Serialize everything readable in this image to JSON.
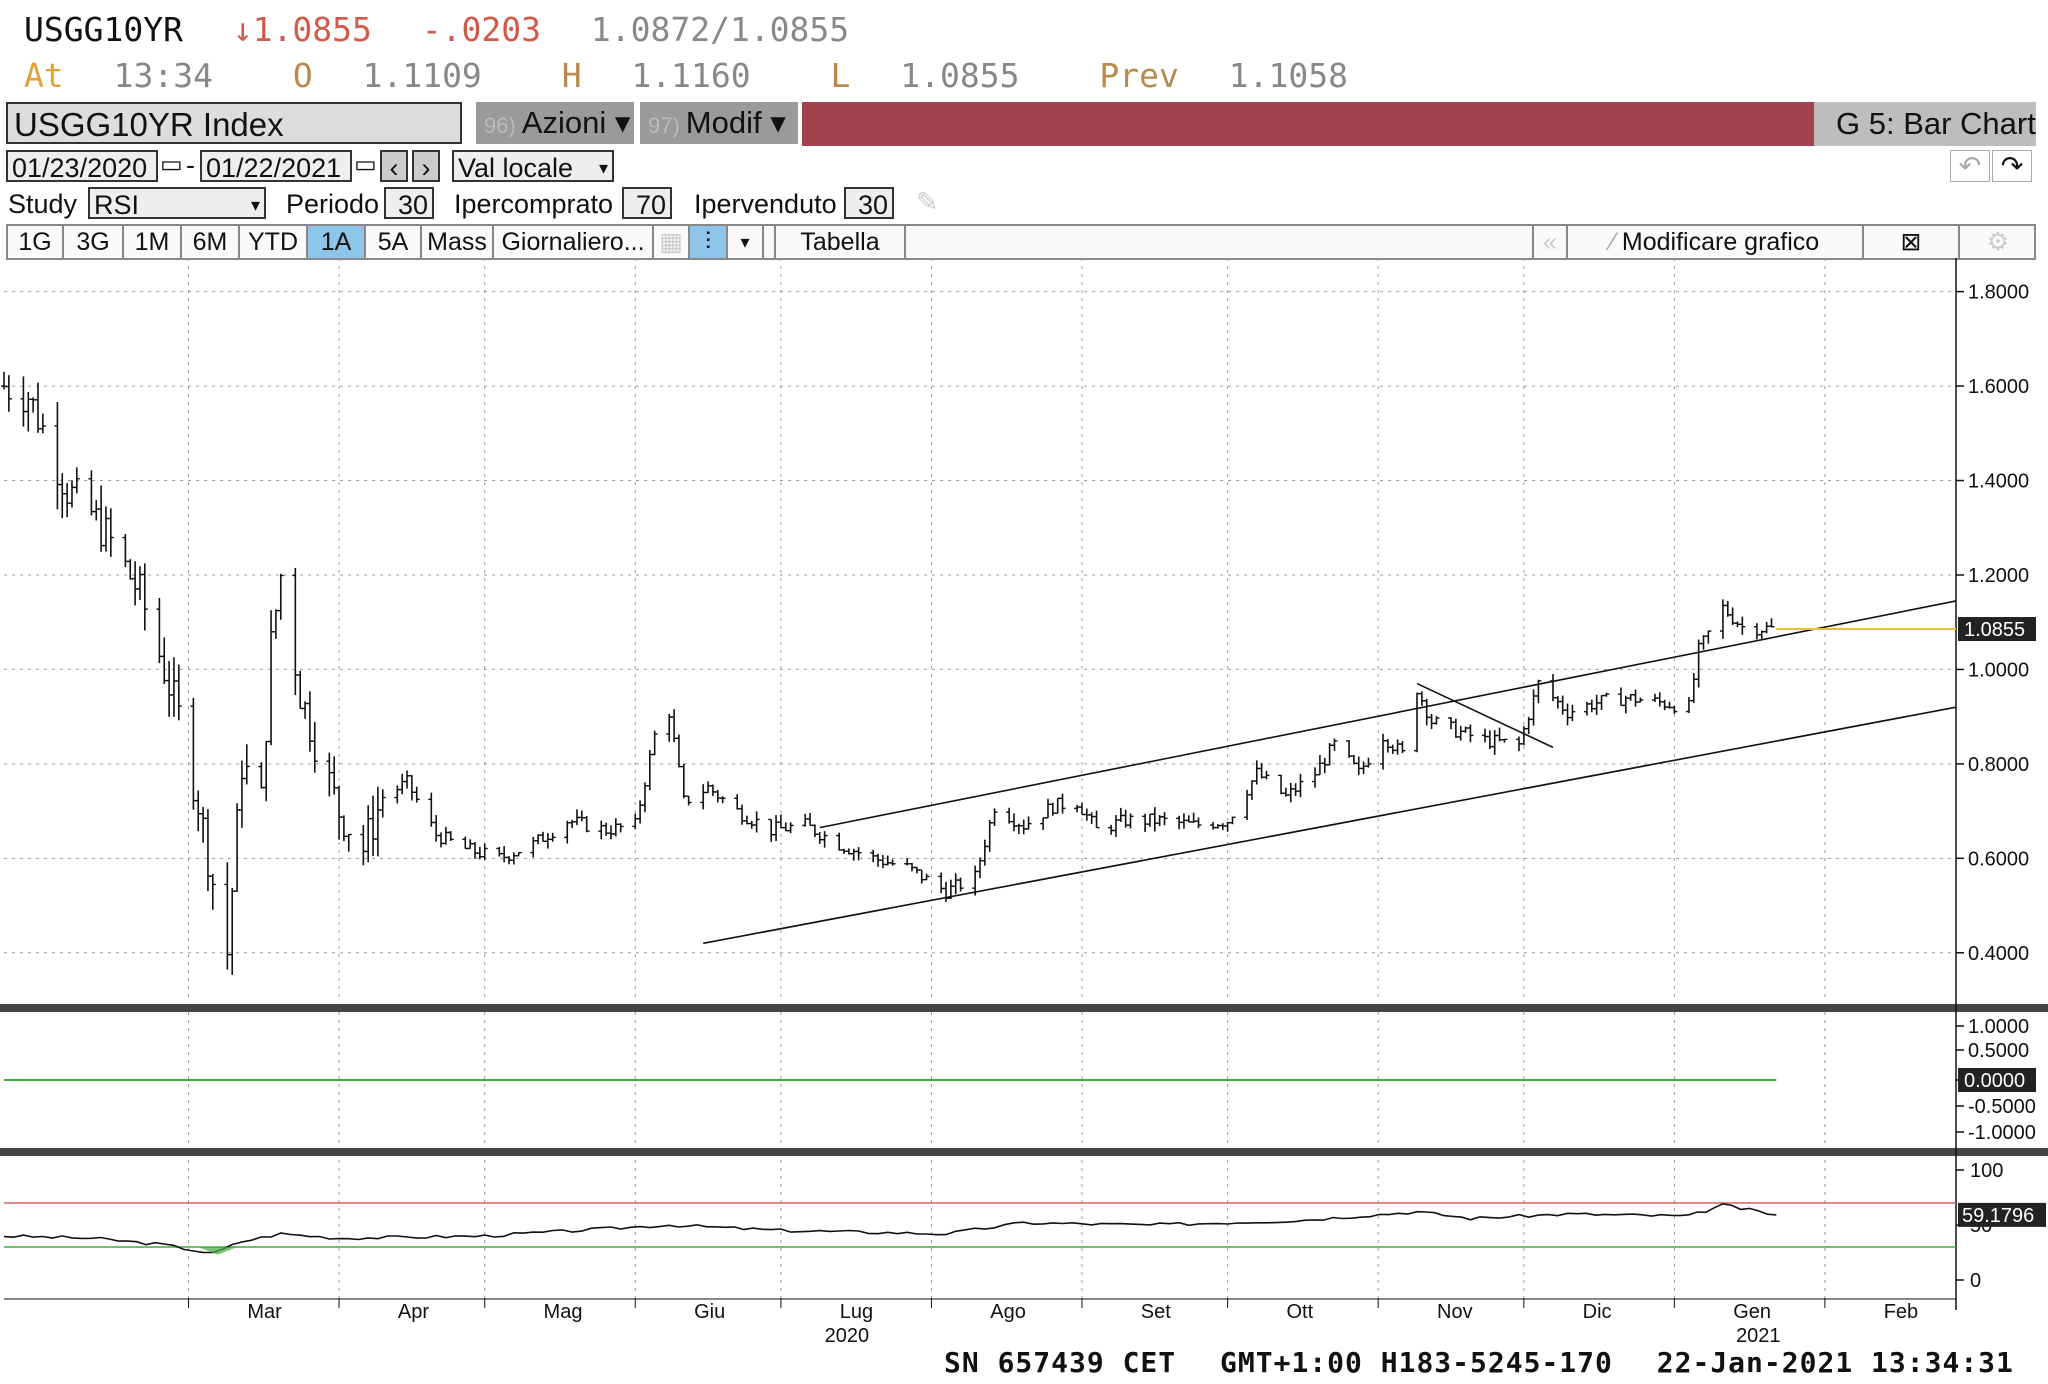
{
  "quote": {
    "ticker": "USGG10YR",
    "last": "↓1.0855",
    "change": "-.0203",
    "bid_ask": "1.0872/1.0855",
    "at_label": "At",
    "at_time": "13:34",
    "open_label": "O",
    "open": "1.1109",
    "high_label": "H",
    "high": "1.1160",
    "low_label": "L",
    "low": "1.0855",
    "prev_label": "Prev",
    "prev": "1.1058"
  },
  "toolbar": {
    "security": "USGG10YR Index",
    "actions_num": "96)",
    "actions_label": "Azioni",
    "edit_num": "97)",
    "edit_label": "Modif",
    "chart_name": "G 5: Bar Chart"
  },
  "range": {
    "start": "01/23/2020",
    "end": "01/22/2021",
    "currency": "Val locale"
  },
  "study": {
    "label": "Study",
    "value": "RSI",
    "period_label": "Periodo",
    "period": "30",
    "overbought_label": "Ipercomprato",
    "overbought": "70",
    "oversold_label": "Ipervenduto",
    "oversold": "30"
  },
  "periods": [
    "1G",
    "3G",
    "1M",
    "6M",
    "YTD",
    "1A",
    "5A",
    "Mass"
  ],
  "active_period": "1A",
  "frequency": "Giornaliero...",
  "table_label": "Tabella",
  "edit_chart_label": "Modificare grafico",
  "footer": {
    "sn": "SN 657439 CET",
    "gmt": "GMT+1:00 H183-5245-170",
    "datetime": "22-Jan-2021 13:34:31"
  },
  "colors": {
    "red_band": "#a1424c",
    "price_line": "#f0c030",
    "rsi_upper": "#d86060",
    "rsi_lower": "#44aa44",
    "active_tab": "#8ec3ea"
  },
  "chart_data": {
    "type": "bar",
    "title": "USGG10YR Index",
    "price_panel": {
      "ylim": [
        0.3,
        1.85
      ],
      "ticks": [
        "1.8000",
        "1.6000",
        "1.4000",
        "1.2000",
        "1.0000",
        "0.8000",
        "0.6000",
        "0.4000"
      ],
      "last_value_label": "1.0855",
      "last_value": 1.0855,
      "series": [
        {
          "date": "2020-01-23",
          "close": 1.6
        },
        {
          "date": "2020-01-28",
          "close": 1.58
        },
        {
          "date": "2020-01-31",
          "close": 1.51
        },
        {
          "date": "2020-02-05",
          "close": 1.38
        },
        {
          "date": "2020-02-10",
          "close": 1.33
        },
        {
          "date": "2020-02-14",
          "close": 1.27
        },
        {
          "date": "2020-02-20",
          "close": 1.16
        },
        {
          "date": "2020-02-25",
          "close": 1.0
        },
        {
          "date": "2020-02-28",
          "close": 0.9
        },
        {
          "date": "2020-03-03",
          "close": 0.72
        },
        {
          "date": "2020-03-06",
          "close": 0.55
        },
        {
          "date": "2020-03-09",
          "close": 0.4
        },
        {
          "date": "2020-03-12",
          "close": 0.8
        },
        {
          "date": "2020-03-16",
          "close": 0.72
        },
        {
          "date": "2020-03-18",
          "close": 1.05
        },
        {
          "date": "2020-03-20",
          "close": 1.2
        },
        {
          "date": "2020-03-24",
          "close": 0.95
        },
        {
          "date": "2020-03-27",
          "close": 0.85
        },
        {
          "date": "2020-04-01",
          "close": 0.7
        },
        {
          "date": "2020-04-06",
          "close": 0.62
        },
        {
          "date": "2020-04-10",
          "close": 0.73
        },
        {
          "date": "2020-04-15",
          "close": 0.76
        },
        {
          "date": "2020-04-21",
          "close": 0.65
        },
        {
          "date": "2020-04-27",
          "close": 0.62
        },
        {
          "date": "2020-05-04",
          "close": 0.6
        },
        {
          "date": "2020-05-11",
          "close": 0.63
        },
        {
          "date": "2020-05-18",
          "close": 0.68
        },
        {
          "date": "2020-05-26",
          "close": 0.66
        },
        {
          "date": "2020-06-01",
          "close": 0.67
        },
        {
          "date": "2020-06-05",
          "close": 0.86
        },
        {
          "date": "2020-06-08",
          "close": 0.91
        },
        {
          "date": "2020-06-11",
          "close": 0.72
        },
        {
          "date": "2020-06-16",
          "close": 0.75
        },
        {
          "date": "2020-06-22",
          "close": 0.7
        },
        {
          "date": "2020-06-29",
          "close": 0.66
        },
        {
          "date": "2020-07-06",
          "close": 0.67
        },
        {
          "date": "2020-07-13",
          "close": 0.63
        },
        {
          "date": "2020-07-20",
          "close": 0.6
        },
        {
          "date": "2020-07-27",
          "close": 0.58
        },
        {
          "date": "2020-08-04",
          "close": 0.53
        },
        {
          "date": "2020-08-10",
          "close": 0.56
        },
        {
          "date": "2020-08-14",
          "close": 0.71
        },
        {
          "date": "2020-08-20",
          "close": 0.67
        },
        {
          "date": "2020-08-26",
          "close": 0.71
        },
        {
          "date": "2020-08-31",
          "close": 0.72
        },
        {
          "date": "2020-09-04",
          "close": 0.66
        },
        {
          "date": "2020-09-10",
          "close": 0.68
        },
        {
          "date": "2020-09-17",
          "close": 0.68
        },
        {
          "date": "2020-09-24",
          "close": 0.67
        },
        {
          "date": "2020-10-01",
          "close": 0.68
        },
        {
          "date": "2020-10-07",
          "close": 0.78
        },
        {
          "date": "2020-10-13",
          "close": 0.73
        },
        {
          "date": "2020-10-19",
          "close": 0.78
        },
        {
          "date": "2020-10-23",
          "close": 0.84
        },
        {
          "date": "2020-10-28",
          "close": 0.78
        },
        {
          "date": "2020-11-02",
          "close": 0.86
        },
        {
          "date": "2020-11-06",
          "close": 0.82
        },
        {
          "date": "2020-11-09",
          "close": 0.96
        },
        {
          "date": "2020-11-12",
          "close": 0.89
        },
        {
          "date": "2020-11-17",
          "close": 0.87
        },
        {
          "date": "2020-11-23",
          "close": 0.85
        },
        {
          "date": "2020-11-30",
          "close": 0.84
        },
        {
          "date": "2020-12-04",
          "close": 0.97
        },
        {
          "date": "2020-12-10",
          "close": 0.91
        },
        {
          "date": "2020-12-16",
          "close": 0.93
        },
        {
          "date": "2020-12-22",
          "close": 0.94
        },
        {
          "date": "2020-12-29",
          "close": 0.93
        },
        {
          "date": "2021-01-04",
          "close": 0.92
        },
        {
          "date": "2021-01-06",
          "close": 1.04
        },
        {
          "date": "2021-01-11",
          "close": 1.13
        },
        {
          "date": "2021-01-15",
          "close": 1.09
        },
        {
          "date": "2021-01-22",
          "close": 1.0855
        }
      ]
    },
    "zero_panel": {
      "ticks": [
        "1.0000",
        "0.5000",
        "0.0000",
        "-0.5000",
        "-1.0000"
      ],
      "value_label": "0.0000"
    },
    "rsi_panel": {
      "ticks": [
        "100",
        "50",
        "0"
      ],
      "overbought": 70,
      "oversold": 30,
      "last_value_label": "59.1796",
      "series": [
        {
          "date": "2020-01-23",
          "value": 40
        },
        {
          "date": "2020-02-10",
          "value": 38
        },
        {
          "date": "2020-02-25",
          "value": 32
        },
        {
          "date": "2020-03-06",
          "value": 24
        },
        {
          "date": "2020-03-12",
          "value": 35
        },
        {
          "date": "2020-03-20",
          "value": 42
        },
        {
          "date": "2020-04-01",
          "value": 38
        },
        {
          "date": "2020-05-01",
          "value": 40
        },
        {
          "date": "2020-06-08",
          "value": 50
        },
        {
          "date": "2020-07-01",
          "value": 45
        },
        {
          "date": "2020-08-04",
          "value": 42
        },
        {
          "date": "2020-08-20",
          "value": 52
        },
        {
          "date": "2020-09-15",
          "value": 50
        },
        {
          "date": "2020-10-15",
          "value": 54
        },
        {
          "date": "2020-11-09",
          "value": 62
        },
        {
          "date": "2020-11-20",
          "value": 56
        },
        {
          "date": "2020-12-10",
          "value": 60
        },
        {
          "date": "2021-01-04",
          "value": 58
        },
        {
          "date": "2021-01-11",
          "value": 68
        },
        {
          "date": "2021-01-22",
          "value": 59.1796
        }
      ]
    },
    "x_axis": {
      "months": [
        "Mar",
        "Apr",
        "Mag",
        "Giu",
        "Lug",
        "Ago",
        "Set",
        "Ott",
        "Nov",
        "Dic",
        "Gen",
        "Feb"
      ],
      "years": [
        "2020",
        "2021"
      ]
    },
    "trendlines": [
      "channel-upper",
      "channel-lower",
      "short-down-line"
    ],
    "grid": true
  }
}
